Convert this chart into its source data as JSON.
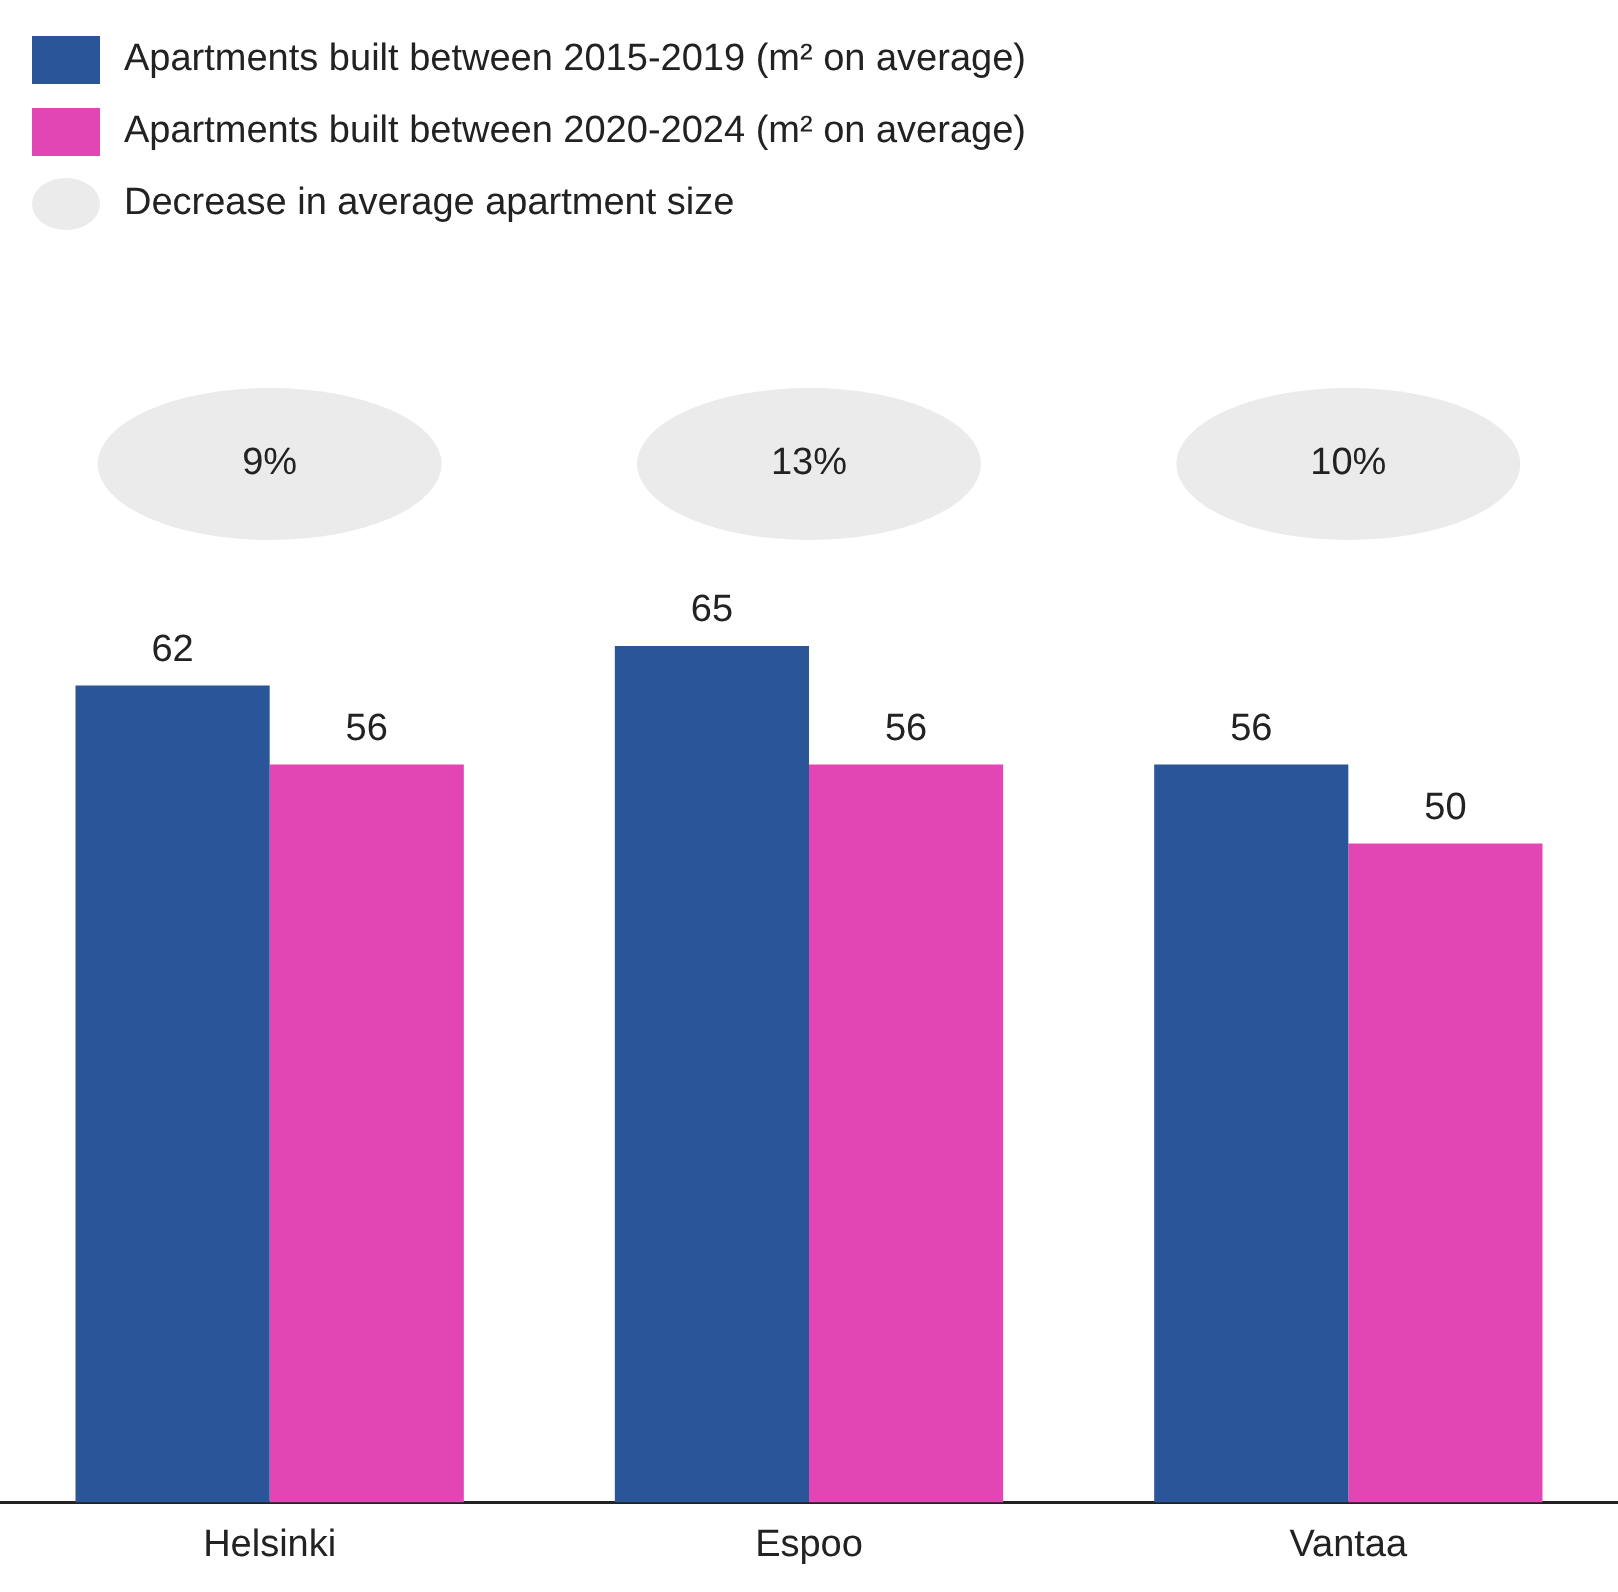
{
  "chart_data": {
    "type": "bar",
    "categories": [
      "Helsinki",
      "Espoo",
      "Vantaa"
    ],
    "series": [
      {
        "name": "Apartments built between 2015-2019 (m² on average)",
        "color": "#2a5599",
        "values": [
          62,
          65,
          56
        ]
      },
      {
        "name": "Apartments built between 2020-2024 (m² on average)",
        "color": "#e246b4",
        "values": [
          56,
          56,
          50
        ]
      }
    ],
    "annotations": [
      "Decrease in average apartment size",
      "9%",
      "13%",
      "10%"
    ],
    "data_labels": true,
    "legend": "top left",
    "grid": false
  }
}
